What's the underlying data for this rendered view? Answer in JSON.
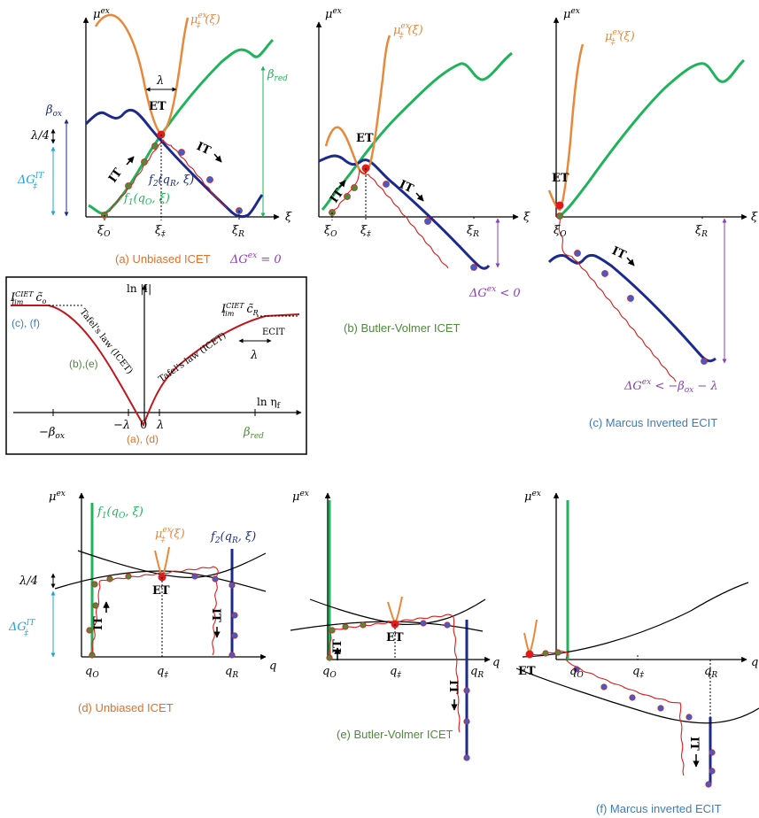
{
  "colors": {
    "orange": "#E8883A",
    "green": "#1FB35A",
    "navy": "#1B2A8C",
    "red": "#E01B1B",
    "cyan": "#1FA3E0",
    "purple": "#8B3FB5",
    "caption_orange": "#E0702A",
    "caption_green": "#4E8A3A",
    "caption_blue": "#3A7DBF",
    "black": "#000000"
  },
  "labels": {
    "mu_ex": "μ",
    "mu_ex_sup": "ex",
    "xi": "ξ",
    "q": "q",
    "mu_ts": "μ",
    "mu_ts_sup": "ex",
    "mu_ts_sub": "‡",
    "mu_ts_arg": "(ξ)",
    "beta_red": "β",
    "beta_red_sub": "red",
    "beta_ox": "β",
    "beta_ox_sub": "ox",
    "lambda": "λ",
    "lambda4": "λ/4",
    "dG_IT": "ΔG",
    "dG_IT_sup": "IT",
    "dG_IT_sub": "‡",
    "ET": "ET",
    "IT": "IT",
    "f1": "f",
    "f1_sub": "1",
    "f1_arg": "(q",
    "f1_argsub": "O",
    "f1_tail": ", ξ)",
    "f2": "f",
    "f2_sub": "2",
    "f2_arg": "(q",
    "f2_argsub": "R",
    "f2_tail": ", ξ)",
    "xi_O": "ξ",
    "xi_O_sub": "O",
    "xi_ts": "ξ",
    "xi_ts_sub": "‡",
    "xi_R": "ξ",
    "xi_R_sub": "R",
    "q_O": "q",
    "q_O_sub": "O",
    "q_ts": "q",
    "q_ts_sub": "‡",
    "q_R": "q",
    "q_R_sub": "R",
    "dGex_a": "ΔG",
    "dGex_a_sup": "ex",
    "dGex_a_tail": " = 0",
    "dGex_b": "ΔG",
    "dGex_b_sup": "ex",
    "dGex_b_tail": " < 0",
    "dGex_c": "ΔG",
    "dGex_c_sup": "ex",
    "dGex_c_tail": " < −β",
    "dGex_c_sub": "ox",
    "dGex_c_end": " − λ"
  },
  "inset": {
    "ylabel": "ln |I|",
    "xlabel": "ln η",
    "xlabel_sub": "f",
    "ilim_left": "I",
    "ilim_left_sup": "CIET",
    "ilim_left_sub": "lim",
    "c_o": "c̃",
    "c_o_sub": "o",
    "ilim_right": "I",
    "ilim_right_sup": "CIET",
    "ilim_right_sub": "lim",
    "c_R": "c̃",
    "c_R_sub": "R",
    "tafel_left": "Tafel's law (ICET)",
    "tafel_right": "Tafel's law (ICET)",
    "ecit": "ECIT",
    "lambda": "λ",
    "cf": "(c), (f)",
    "be": "(b),(e)",
    "ad": "(a), (d)",
    "neg_beta": "−β",
    "neg_beta_sub": "ox",
    "neg_lambda": "−λ",
    "zero": "0",
    "pos_lambda": "λ",
    "beta_red": "β",
    "beta_red_sub": "red"
  },
  "captions": {
    "a": "(a)  Unbiased ICET",
    "b": "(b)  Butler-Volmer ICET",
    "c": "(c)  Marcus Inverted ECIT",
    "d": "(d)  Unbiased ICET",
    "e": "(e)  Butler-Volmer ICET",
    "f": "(f)  Marcus inverted ECIT"
  }
}
